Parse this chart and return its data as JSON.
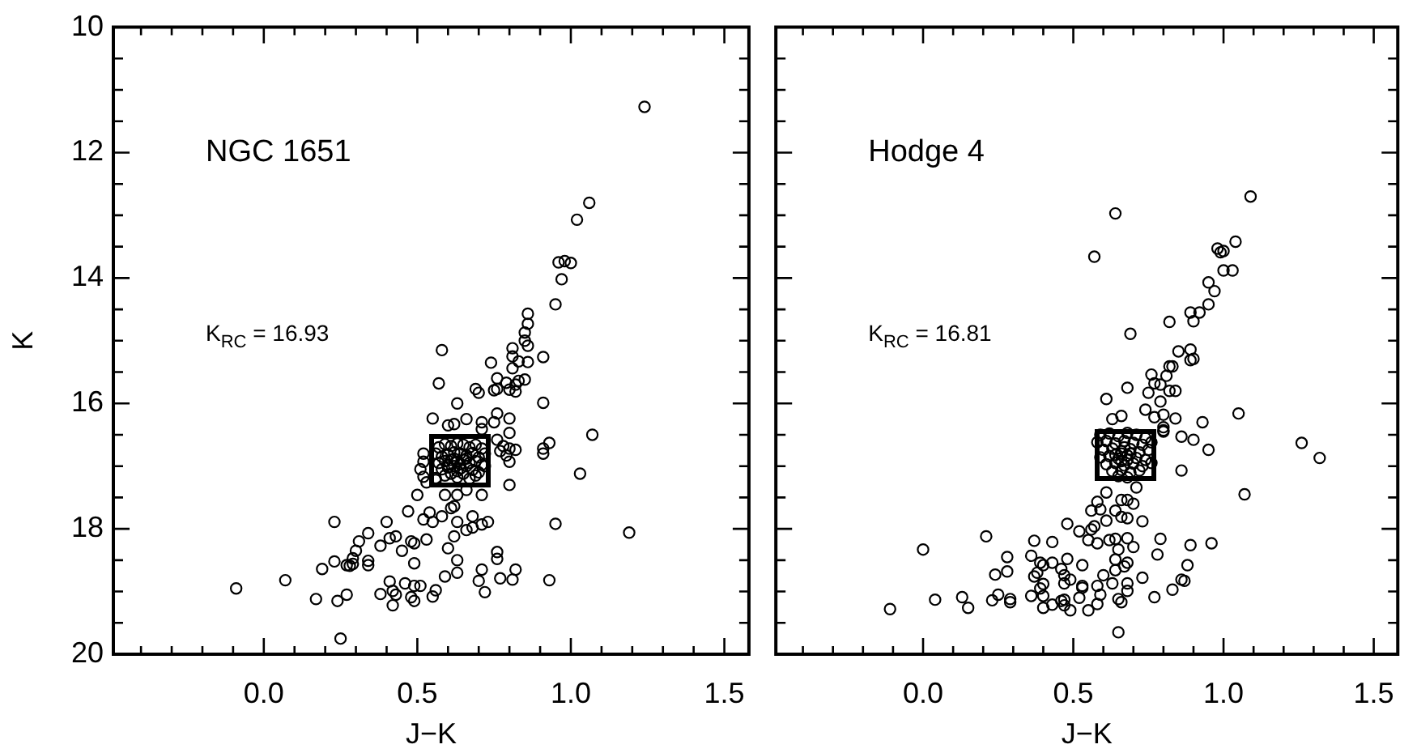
{
  "chart_data": [
    {
      "type": "scatter",
      "xlabel": "J−K",
      "ylabel": "K",
      "marker": "circle",
      "annotations": [
        "NGC 1651",
        "K$_{RC}$ = 16.93"
      ],
      "xlim": [
        -0.49,
        1.58
      ],
      "ylim": [
        20,
        10
      ],
      "xticks": [
        {
          "value": -0.4,
          "label": null
        },
        {
          "value": -0.3,
          "label": null
        },
        {
          "value": -0.2,
          "label": null
        },
        {
          "value": -0.1,
          "label": null
        },
        {
          "value": 0,
          "label": "0.0"
        },
        {
          "value": 0.1,
          "label": null
        },
        {
          "value": 0.2,
          "label": null
        },
        {
          "value": 0.3,
          "label": null
        },
        {
          "value": 0.4,
          "label": null
        },
        {
          "value": 0.5,
          "label": "0.5"
        },
        {
          "value": 0.6,
          "label": null
        },
        {
          "value": 0.7,
          "label": null
        },
        {
          "value": 0.8,
          "label": null
        },
        {
          "value": 0.9,
          "label": null
        },
        {
          "value": 1,
          "label": "1.0"
        },
        {
          "value": 1.1,
          "label": null
        },
        {
          "value": 1.2,
          "label": null
        },
        {
          "value": 1.3,
          "label": null
        },
        {
          "value": 1.4,
          "label": null
        },
        {
          "value": 1.5,
          "label": "1.5"
        }
      ],
      "yticks": [
        10,
        {
          "value": 10.5,
          "label": null
        },
        {
          "value": 11,
          "label": null
        },
        {
          "value": 11.5,
          "label": null
        },
        12,
        {
          "value": 12.5,
          "label": null
        },
        {
          "value": 13,
          "label": null
        },
        {
          "value": 13.5,
          "label": null
        },
        14,
        {
          "value": 14.5,
          "label": null
        },
        {
          "value": 15,
          "label": null
        },
        {
          "value": 15.5,
          "label": null
        },
        16,
        {
          "value": 16.5,
          "label": null
        },
        {
          "value": 17,
          "label": null
        },
        {
          "value": 17.5,
          "label": null
        },
        18,
        {
          "value": 18.5,
          "label": null
        },
        {
          "value": 19,
          "label": null
        },
        {
          "value": 19.5,
          "label": null
        },
        20
      ],
      "series": [
        {
          "color": "#000000",
          "x": [
            1.24,
            1.06,
            1.02,
            0.96,
            0.98,
            1.0,
            0.97,
            0.95,
            0.86,
            0.86,
            0.85,
            0.85,
            0.81,
            0.86,
            0.58,
            0.81,
            0.83,
            0.86,
            0.81,
            0.85,
            0.83,
            0.74,
            0.91,
            0.57,
            0.76,
            0.79,
            0.76,
            0.75,
            0.8,
            0.82,
            0.82,
            0.69,
            0.7,
            0.63,
            0.91,
            0.55,
            0.6,
            0.62,
            0.66,
            0.71,
            0.71,
            0.76,
            0.8,
            0.75,
            0.8,
            0.76,
            0.78,
            0.77,
            0.8,
            0.82,
            0.91,
            0.93,
            0.91,
            1.07,
            0.52,
            0.52,
            0.51,
            0.52,
            0.53,
            0.56,
            0.66,
            0.63,
            0.59,
            0.71,
            0.5,
            0.79,
            0.8,
            0.8,
            0.62,
            0.61,
            0.47,
            0.54,
            0.52,
            0.58,
            0.55,
            0.63,
            0.66,
            0.68,
            0.71,
            0.73,
            0.68,
            0.23,
            0.34,
            0.31,
            0.3,
            0.29,
            0.29,
            0.34,
            0.38,
            0.4,
            0.41,
            0.43,
            0.45,
            0.48,
            0.49,
            0.53,
            0.6,
            0.62,
            0.63,
            0.63,
            0.49,
            0.23,
            0.27,
            0.28,
            0.34,
            0.19,
            0.07,
            -0.09,
            0.17,
            0.24,
            0.27,
            0.38,
            0.42,
            0.41,
            0.46,
            0.49,
            0.48,
            0.43,
            0.42,
            0.49,
            0.56,
            0.59,
            0.51,
            0.55,
            0.7,
            0.72,
            0.71,
            0.76,
            0.76,
            0.82,
            0.81,
            0.77,
            0.93,
            0.95,
            1.19,
            1.03,
            0.25,
            0.57,
            0.59,
            0.61,
            0.63,
            0.65,
            0.67,
            0.69,
            0.71,
            0.72,
            0.56,
            0.58,
            0.6,
            0.62,
            0.64,
            0.66,
            0.68,
            0.7,
            0.57,
            0.59,
            0.61,
            0.63,
            0.65,
            0.67,
            0.69,
            0.71,
            0.58,
            0.6,
            0.62,
            0.64,
            0.66,
            0.68,
            0.7,
            0.72,
            0.59,
            0.61,
            0.63,
            0.65,
            0.67,
            0.69,
            0.56,
            0.62,
            0.64,
            0.66,
            0.63,
            0.6
          ],
          "values": [
            11.27,
            12.8,
            13.07,
            13.75,
            13.73,
            13.76,
            14.02,
            14.42,
            14.57,
            14.73,
            14.87,
            15.0,
            15.12,
            15.08,
            15.15,
            15.25,
            15.33,
            15.34,
            15.44,
            15.62,
            15.64,
            15.35,
            15.26,
            15.68,
            15.6,
            15.67,
            15.77,
            15.79,
            15.78,
            15.81,
            15.7,
            15.77,
            15.83,
            16.0,
            15.99,
            16.24,
            16.35,
            16.33,
            16.25,
            16.3,
            16.41,
            16.16,
            16.24,
            16.3,
            16.47,
            16.58,
            16.68,
            16.76,
            16.72,
            16.74,
            16.72,
            16.63,
            16.8,
            16.5,
            16.8,
            16.93,
            17.05,
            17.17,
            17.26,
            17.19,
            17.38,
            17.46,
            17.46,
            17.46,
            17.46,
            16.83,
            17.3,
            16.93,
            17.64,
            17.67,
            17.72,
            17.74,
            17.85,
            17.8,
            17.89,
            17.89,
            18.02,
            17.98,
            17.93,
            17.89,
            17.8,
            17.89,
            18.07,
            18.2,
            18.35,
            18.47,
            18.56,
            18.51,
            18.27,
            17.89,
            18.15,
            18.12,
            18.35,
            18.2,
            18.23,
            18.17,
            18.31,
            18.12,
            18.5,
            18.7,
            18.55,
            18.52,
            18.58,
            18.59,
            18.58,
            18.64,
            18.82,
            18.95,
            19.12,
            19.15,
            19.05,
            19.04,
            18.99,
            18.84,
            18.87,
            18.91,
            19.09,
            19.05,
            19.22,
            19.15,
            18.98,
            18.76,
            18.91,
            19.08,
            18.83,
            19.01,
            18.65,
            18.37,
            18.48,
            18.65,
            18.81,
            18.79,
            18.82,
            17.92,
            18.06,
            17.12,
            19.75,
            16.7,
            16.65,
            16.68,
            16.64,
            16.66,
            16.7,
            16.66,
            16.72,
            16.8,
            16.8,
            16.85,
            16.82,
            16.78,
            16.8,
            16.83,
            16.79,
            16.86,
            16.95,
            16.92,
            16.9,
            16.93,
            16.9,
            16.95,
            16.92,
            16.98,
            17.05,
            17.02,
            17.0,
            17.04,
            17.0,
            17.06,
            17.1,
            17.0,
            17.15,
            17.12,
            17.18,
            17.12,
            17.2,
            17.15,
            17.22,
            16.88,
            16.97,
            16.88,
            17.08,
            16.98
          ]
        }
      ]
    },
    {
      "type": "scatter",
      "xlabel": "J−K",
      "marker": "circle",
      "tick_labels": "x",
      "annotations": [
        "Hodge 4",
        "K$_{RC}$ = 16.81"
      ],
      "xlim": [
        -0.49,
        1.58
      ],
      "ylim": [
        20,
        10
      ],
      "xticks": [
        {
          "value": -0.4,
          "label": null
        },
        {
          "value": -0.3,
          "label": null
        },
        {
          "value": -0.2,
          "label": null
        },
        {
          "value": -0.1,
          "label": null
        },
        {
          "value": 0,
          "label": "0.0"
        },
        {
          "value": 0.1,
          "label": null
        },
        {
          "value": 0.2,
          "label": null
        },
        {
          "value": 0.3,
          "label": null
        },
        {
          "value": 0.4,
          "label": null
        },
        {
          "value": 0.5,
          "label": "0.5"
        },
        {
          "value": 0.6,
          "label": null
        },
        {
          "value": 0.7,
          "label": null
        },
        {
          "value": 0.8,
          "label": null
        },
        {
          "value": 0.9,
          "label": null
        },
        {
          "value": 1,
          "label": "1.0"
        },
        {
          "value": 1.1,
          "label": null
        },
        {
          "value": 1.2,
          "label": null
        },
        {
          "value": 1.3,
          "label": null
        },
        {
          "value": 1.4,
          "label": null
        },
        {
          "value": 1.5,
          "label": "1.5"
        }
      ],
      "yticks": [
        {
          "value": 10,
          "label": null
        },
        {
          "value": 10.5,
          "label": null
        },
        {
          "value": 11,
          "label": null
        },
        {
          "value": 11.5,
          "label": null
        },
        {
          "value": 12,
          "label": null
        },
        {
          "value": 12.5,
          "label": null
        },
        {
          "value": 13,
          "label": null
        },
        {
          "value": 13.5,
          "label": null
        },
        {
          "value": 14,
          "label": null
        },
        {
          "value": 14.5,
          "label": null
        },
        {
          "value": 15,
          "label": null
        },
        {
          "value": 15.5,
          "label": null
        },
        {
          "value": 16,
          "label": null
        },
        {
          "value": 16.5,
          "label": null
        },
        {
          "value": 17,
          "label": null
        },
        {
          "value": 17.5,
          "label": null
        },
        {
          "value": 18,
          "label": null
        },
        {
          "value": 18.5,
          "label": null
        },
        {
          "value": 19,
          "label": null
        },
        {
          "value": 19.5,
          "label": null
        },
        {
          "value": 20,
          "label": null
        }
      ],
      "series": [
        {
          "color": "#000000",
          "x": [
            1.09,
            0.64,
            0.57,
            0.98,
            0.99,
            1.0,
            1.04,
            1.0,
            1.03,
            0.95,
            0.97,
            0.95,
            0.89,
            0.92,
            0.9,
            0.82,
            0.69,
            0.85,
            0.89,
            0.89,
            0.9,
            0.82,
            0.83,
            0.76,
            0.81,
            0.77,
            0.79,
            0.82,
            0.84,
            0.68,
            0.75,
            0.79,
            0.74,
            0.61,
            0.63,
            0.66,
            0.77,
            0.8,
            0.84,
            0.8,
            0.8,
            0.8,
            0.93,
            0.86,
            0.9,
            0.95,
            1.05,
            1.26,
            1.32,
            0.86,
            1.07,
            0.61,
            0.71,
            0.66,
            0.68,
            0.7,
            0.58,
            0.56,
            0.59,
            0.64,
            0.61,
            0.66,
            0.68,
            0.73,
            0.48,
            0.52,
            0.56,
            0.57,
            0.55,
            0.58,
            0.62,
            0.64,
            0.68,
            0.65,
            0.7,
            0.79,
            0.78,
            0.89,
            0.96,
            0.88,
            0.86,
            0.87,
            0.83,
            0.77,
            0.73,
            0.68,
            0.67,
            0.64,
            0.64,
            0.6,
            0.63,
            0.68,
            0.68,
            0.58,
            0.59,
            0.58,
            0.65,
            0.66,
            0.65,
            0.53,
            0.53,
            0.53,
            0.52,
            0.55,
            0.49,
            0.47,
            0.47,
            0.47,
            0.49,
            0.47,
            0.46,
            0.48,
            0.43,
            0.43,
            0.37,
            0.36,
            0.39,
            0.4,
            0.38,
            0.37,
            0.4,
            0.39,
            0.4,
            0.36,
            0.4,
            0.43,
            0.46,
            0.21,
            0.28,
            0.28,
            0.24,
            0.25,
            0.23,
            0.29,
            0.29,
            0.13,
            0.15,
            0.04,
            0.0,
            -0.11,
            0.59,
            0.62,
            0.65,
            0.68,
            0.71,
            0.74,
            0.58,
            0.61,
            0.64,
            0.67,
            0.7,
            0.73,
            0.76,
            0.6,
            0.63,
            0.66,
            0.69,
            0.72,
            0.75,
            0.59,
            0.62,
            0.65,
            0.68,
            0.71,
            0.74,
            0.61,
            0.64,
            0.67,
            0.7,
            0.73,
            0.76,
            0.63,
            0.66,
            0.69,
            0.72,
            0.65,
            0.68,
            0.66,
            0.67,
            0.68,
            0.66,
            0.69,
            0.64
          ],
          "values": [
            12.7,
            12.97,
            13.66,
            13.53,
            13.59,
            13.57,
            13.42,
            13.88,
            13.88,
            14.07,
            14.21,
            14.42,
            14.55,
            14.55,
            14.69,
            14.7,
            14.89,
            15.17,
            15.14,
            15.31,
            15.29,
            15.41,
            15.41,
            15.54,
            15.56,
            15.68,
            15.7,
            15.8,
            15.8,
            15.75,
            15.83,
            15.97,
            16.1,
            15.93,
            16.25,
            16.2,
            16.22,
            16.18,
            16.24,
            16.38,
            16.43,
            16.45,
            16.3,
            16.53,
            16.58,
            16.74,
            16.16,
            16.63,
            16.87,
            17.07,
            17.45,
            17.42,
            17.34,
            17.54,
            17.54,
            17.6,
            17.57,
            17.71,
            17.69,
            17.71,
            17.87,
            17.81,
            17.83,
            17.88,
            17.92,
            18.04,
            18.01,
            17.96,
            18.18,
            18.23,
            18.18,
            18.16,
            18.15,
            18.33,
            18.29,
            18.16,
            18.41,
            18.26,
            18.23,
            18.58,
            18.81,
            18.83,
            18.97,
            19.09,
            18.78,
            18.54,
            18.6,
            18.49,
            18.66,
            18.74,
            18.87,
            18.87,
            18.99,
            18.91,
            19.05,
            19.2,
            19.12,
            19.17,
            19.65,
            18.58,
            18.91,
            18.94,
            19.1,
            19.3,
            19.3,
            19.22,
            19.13,
            18.74,
            18.81,
            18.87,
            18.64,
            18.48,
            18.21,
            18.54,
            18.19,
            18.43,
            18.54,
            18.58,
            18.7,
            18.76,
            18.88,
            18.95,
            19.07,
            19.07,
            19.26,
            19.21,
            19.15,
            18.12,
            18.45,
            18.68,
            18.73,
            19.05,
            19.14,
            19.12,
            19.17,
            19.09,
            19.26,
            19.13,
            18.33,
            19.28,
            16.5,
            16.48,
            16.52,
            16.47,
            16.5,
            16.55,
            16.62,
            16.6,
            16.64,
            16.6,
            16.63,
            16.66,
            16.62,
            16.74,
            16.72,
            16.76,
            16.73,
            16.78,
            16.74,
            16.86,
            16.84,
            16.88,
            16.83,
            16.87,
            16.9,
            16.97,
            16.95,
            16.99,
            16.96,
            17.0,
            16.95,
            17.08,
            17.06,
            17.1,
            17.07,
            17.16,
            17.18,
            16.8,
            16.7,
            16.9,
            16.92,
            16.8,
            16.82
          ]
        }
      ]
    }
  ]
}
